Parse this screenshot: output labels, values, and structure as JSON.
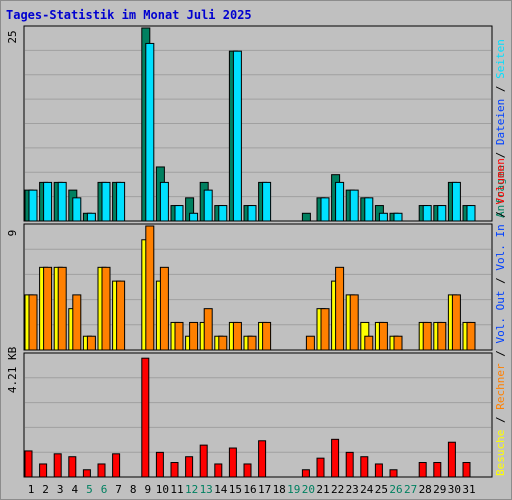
{
  "title": "Tages-Statistik im Monat Juli 2025",
  "colors": {
    "background": "#c0c0c0",
    "title": "#0000d0",
    "anfragen": "#008060",
    "dateien": "#0040ff",
    "seiten": "#00e0ff",
    "besuche": "#ffff00",
    "rechner": "#ff8000",
    "volumen": "#ff0000",
    "weekday": "#000000",
    "weekend": "#008060"
  },
  "chart_data": [
    {
      "type": "bar",
      "panel": "top",
      "ylabel": "25",
      "ylim": [
        0,
        25
      ],
      "categories": [
        "1",
        "2",
        "3",
        "4",
        "5",
        "6",
        "7",
        "8",
        "9",
        "10",
        "11",
        "12",
        "13",
        "14",
        "15",
        "16",
        "17",
        "18",
        "19",
        "20",
        "21",
        "22",
        "23",
        "24",
        "25",
        "26",
        "27",
        "28",
        "29",
        "30",
        "31"
      ],
      "series": [
        {
          "name": "Anfragen",
          "values": [
            4,
            5,
            5,
            4,
            1,
            5,
            5,
            0,
            25,
            7,
            2,
            3,
            5,
            2,
            22,
            2,
            5,
            0,
            0,
            1,
            3,
            6,
            4,
            3,
            2,
            1,
            0,
            2,
            2,
            5,
            2
          ]
        },
        {
          "name": "Dateien",
          "values": [
            0,
            0,
            0,
            0,
            0,
            0,
            0,
            0,
            0,
            0,
            0,
            0,
            0,
            0,
            0,
            0,
            0,
            0,
            0,
            0,
            0,
            0,
            0,
            0,
            0,
            0,
            0,
            0,
            0,
            0,
            0
          ]
        },
        {
          "name": "Seiten",
          "values": [
            4,
            5,
            5,
            3,
            1,
            5,
            5,
            0,
            23,
            5,
            2,
            1,
            4,
            2,
            22,
            2,
            5,
            0,
            0,
            0,
            3,
            5,
            4,
            3,
            1,
            1,
            0,
            2,
            2,
            5,
            2
          ]
        }
      ]
    },
    {
      "type": "bar",
      "panel": "middle",
      "ylabel": "9",
      "ylim": [
        0,
        9
      ],
      "categories": [
        "1",
        "2",
        "3",
        "4",
        "5",
        "6",
        "7",
        "8",
        "9",
        "10",
        "11",
        "12",
        "13",
        "14",
        "15",
        "16",
        "17",
        "18",
        "19",
        "20",
        "21",
        "22",
        "23",
        "24",
        "25",
        "26",
        "27",
        "28",
        "29",
        "30",
        "31"
      ],
      "series": [
        {
          "name": "Besuche",
          "values": [
            4,
            6,
            6,
            3,
            1,
            6,
            5,
            0,
            8,
            5,
            2,
            1,
            2,
            1,
            2,
            1,
            2,
            0,
            0,
            0,
            3,
            5,
            4,
            2,
            2,
            1,
            0,
            2,
            2,
            4,
            2
          ]
        },
        {
          "name": "Rechner",
          "values": [
            4,
            6,
            6,
            4,
            1,
            6,
            5,
            0,
            9,
            6,
            2,
            2,
            3,
            1,
            2,
            1,
            2,
            0,
            0,
            1,
            3,
            6,
            4,
            1,
            2,
            1,
            0,
            2,
            2,
            4,
            2
          ]
        }
      ]
    },
    {
      "type": "bar",
      "panel": "bottom",
      "ylabel": "4.21 KB",
      "ylim": [
        0,
        4.21
      ],
      "categories": [
        "1",
        "2",
        "3",
        "4",
        "5",
        "6",
        "7",
        "8",
        "9",
        "10",
        "11",
        "12",
        "13",
        "14",
        "15",
        "16",
        "17",
        "18",
        "19",
        "20",
        "21",
        "22",
        "23",
        "24",
        "25",
        "26",
        "27",
        "28",
        "29",
        "30",
        "31"
      ],
      "series": [
        {
          "name": "Volumen",
          "values": [
            0.9,
            0.45,
            0.8,
            0.7,
            0.25,
            0.45,
            0.8,
            0,
            4.1,
            0.85,
            0.5,
            0.7,
            1.1,
            0.45,
            1.0,
            0.45,
            1.25,
            0,
            0,
            0.25,
            0.65,
            1.3,
            0.85,
            0.7,
            0.45,
            0.25,
            0,
            0.5,
            0.5,
            1.2,
            0.5
          ]
        }
      ]
    }
  ],
  "x_axis": {
    "days": [
      "1",
      "2",
      "3",
      "4",
      "5",
      "6",
      "7",
      "8",
      "9",
      "10",
      "11",
      "12",
      "13",
      "14",
      "15",
      "16",
      "17",
      "18",
      "19",
      "20",
      "21",
      "22",
      "23",
      "24",
      "25",
      "26",
      "27",
      "28",
      "29",
      "30",
      "31"
    ],
    "weekend": [
      5,
      6,
      12,
      13,
      19,
      20,
      26,
      27
    ]
  },
  "right_legend": {
    "group1": [
      {
        "key": "anfragen",
        "label": "Anfragen"
      },
      {
        "key": "dateien",
        "label": "Dateien"
      },
      {
        "key": "seiten",
        "label": "Seiten"
      }
    ],
    "group2": [
      {
        "key": "besuche",
        "label": "Besuche"
      },
      {
        "key": "rechner",
        "label": "Rechner"
      },
      {
        "key": "dateien",
        "label": "Vol. Out"
      },
      {
        "key": "dateien",
        "label": "Vol. In"
      },
      {
        "key": "volumen",
        "label": "Volumen"
      }
    ],
    "separator": " / "
  }
}
